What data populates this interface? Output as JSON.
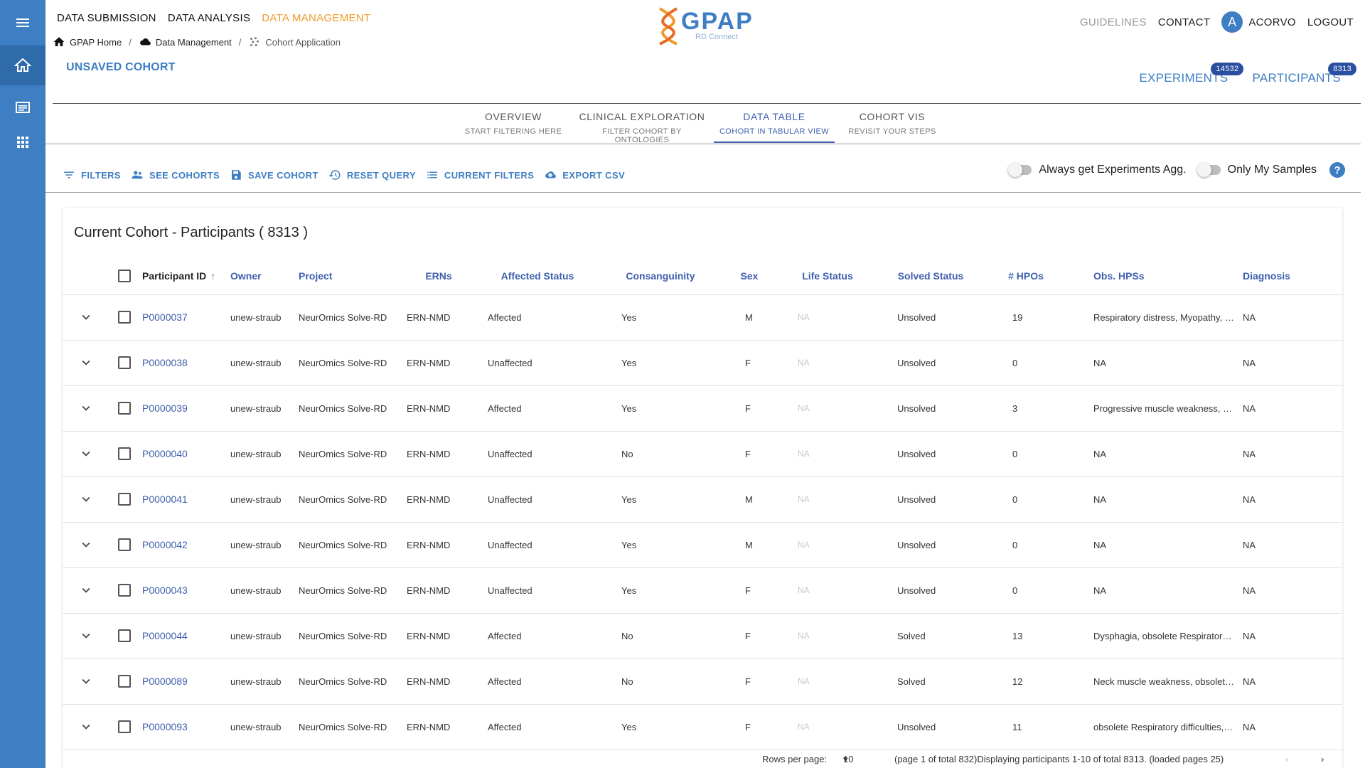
{
  "header": {
    "nav": [
      "DATA SUBMISSION",
      "DATA ANALYSIS",
      "DATA MANAGEMENT"
    ],
    "active_nav": "DATA MANAGEMENT",
    "breadcrumb": [
      "GPAP Home",
      "Data Management",
      "Cohort Application"
    ],
    "logo": {
      "text": "GPAP",
      "sub": "RD Connect"
    },
    "right_nav": {
      "guidelines": "GUIDELINES",
      "contact": "CONTACT",
      "user_initial": "A",
      "user": "ACORVO",
      "logout": "LOGOUT"
    }
  },
  "cohort_title": "UNSAVED COHORT",
  "counters": [
    {
      "label": "EXPERIMENTS",
      "count": "14532"
    },
    {
      "label": "PARTICIPANTS",
      "count": "8313"
    }
  ],
  "tabs": [
    {
      "title": "OVERVIEW",
      "subtitle": "START FILTERING HERE"
    },
    {
      "title": "CLINICAL EXPLORATION",
      "subtitle": "FILTER COHORT BY ONTOLOGIES"
    },
    {
      "title": "DATA TABLE",
      "subtitle": "COHORT IN TABULAR VIEW"
    },
    {
      "title": "COHORT VIS",
      "subtitle": "REVISIT YOUR STEPS"
    }
  ],
  "active_tab": "DATA TABLE",
  "toolbar": {
    "filters": "FILTERS",
    "see_cohorts": "SEE COHORTS",
    "save_cohort": "SAVE COHORT",
    "reset_query": "RESET QUERY",
    "current_filters": "CURRENT FILTERS",
    "export_csv": "EXPORT CSV"
  },
  "toggles": {
    "experiments_agg": "Always get Experiments Agg.",
    "only_my_samples": "Only My Samples",
    "help": "?"
  },
  "table": {
    "title": "Current Cohort - Participants ( 8313 )",
    "columns": [
      "Participant ID",
      "Owner",
      "Project",
      "ERNs",
      "Affected Status",
      "Consanguinity",
      "Sex",
      "Life Status",
      "Solved Status",
      "# HPOs",
      "Obs. HPSs",
      "Diagnosis"
    ],
    "rows": [
      [
        "P0000037",
        "unew-straub",
        "NeurOmics Solve-RD",
        "ERN-NMD",
        "Affected",
        "Yes",
        "M",
        "NA",
        "Unsolved",
        "19",
        "Respiratory distress, Myopathy, Pro...",
        "NA"
      ],
      [
        "P0000038",
        "unew-straub",
        "NeurOmics Solve-RD",
        "ERN-NMD",
        "Unaffected",
        "Yes",
        "F",
        "NA",
        "Unsolved",
        "0",
        "NA",
        "NA"
      ],
      [
        "P0000039",
        "unew-straub",
        "NeurOmics Solve-RD",
        "ERN-NMD",
        "Affected",
        "Yes",
        "F",
        "NA",
        "Unsolved",
        "3",
        "Progressive muscle weakness, Prox...",
        "NA"
      ],
      [
        "P0000040",
        "unew-straub",
        "NeurOmics Solve-RD",
        "ERN-NMD",
        "Unaffected",
        "No",
        "F",
        "NA",
        "Unsolved",
        "0",
        "NA",
        "NA"
      ],
      [
        "P0000041",
        "unew-straub",
        "NeurOmics Solve-RD",
        "ERN-NMD",
        "Unaffected",
        "Yes",
        "M",
        "NA",
        "Unsolved",
        "0",
        "NA",
        "NA"
      ],
      [
        "P0000042",
        "unew-straub",
        "NeurOmics Solve-RD",
        "ERN-NMD",
        "Unaffected",
        "Yes",
        "M",
        "NA",
        "Unsolved",
        "0",
        "NA",
        "NA"
      ],
      [
        "P0000043",
        "unew-straub",
        "NeurOmics Solve-RD",
        "ERN-NMD",
        "Unaffected",
        "Yes",
        "F",
        "NA",
        "Unsolved",
        "0",
        "NA",
        "NA"
      ],
      [
        "P0000044",
        "unew-straub",
        "NeurOmics Solve-RD",
        "ERN-NMD",
        "Affected",
        "No",
        "F",
        "NA",
        "Solved",
        "13",
        "Dysphagia, obsolete Respiratory diff...",
        "NA"
      ],
      [
        "P0000089",
        "unew-straub",
        "NeurOmics Solve-RD",
        "ERN-NMD",
        "Affected",
        "No",
        "F",
        "NA",
        "Solved",
        "12",
        "Neck muscle weakness, obsolete R...",
        "NA"
      ],
      [
        "P0000093",
        "unew-straub",
        "NeurOmics Solve-RD",
        "ERN-NMD",
        "Affected",
        "Yes",
        "F",
        "NA",
        "Unsolved",
        "11",
        "obsolete Respiratory difficulties, Pr...",
        "NA"
      ]
    ]
  },
  "pagination": {
    "rows_per_page_label": "Rows per page:",
    "rows_per_page": "10",
    "info": "(page 1 of total 832)Displaying participants 1-10 of total 8313. (loaded pages 25)"
  }
}
